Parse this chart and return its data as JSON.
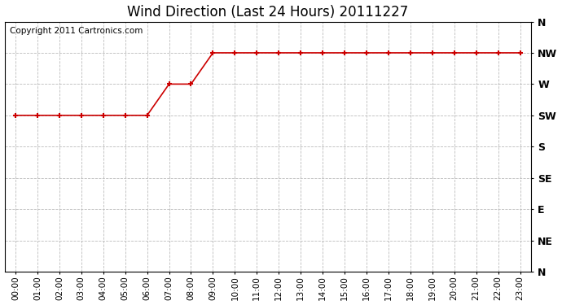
{
  "title": "Wind Direction (Last 24 Hours) 20111227",
  "copyright_text": "Copyright 2011 Cartronics.com",
  "x_labels": [
    "00:00",
    "01:00",
    "02:00",
    "03:00",
    "04:00",
    "05:00",
    "06:00",
    "07:00",
    "08:00",
    "09:00",
    "10:00",
    "11:00",
    "12:00",
    "13:00",
    "14:00",
    "15:00",
    "16:00",
    "17:00",
    "18:00",
    "19:00",
    "20:00",
    "21:00",
    "22:00",
    "23:00"
  ],
  "y_ticks": [
    0,
    1,
    2,
    3,
    4,
    5,
    6,
    7,
    8
  ],
  "y_labels": [
    "N",
    "NE",
    "E",
    "SE",
    "S",
    "SW",
    "W",
    "NW",
    "N"
  ],
  "wind_data": [
    5,
    5,
    5,
    5,
    5,
    5,
    5,
    6,
    6,
    7,
    7,
    7,
    7,
    7,
    7,
    7,
    7,
    7,
    7,
    7,
    7,
    7,
    7,
    7
  ],
  "line_color": "#cc0000",
  "marker": "+",
  "marker_size": 5,
  "line_width": 1.2,
  "grid_color": "#bbbbbb",
  "grid_style": "--",
  "background_color": "#ffffff",
  "plot_bg_color": "#ffffff",
  "title_fontsize": 12,
  "copyright_fontsize": 7.5,
  "figsize": [
    6.9,
    3.75
  ],
  "dpi": 100
}
